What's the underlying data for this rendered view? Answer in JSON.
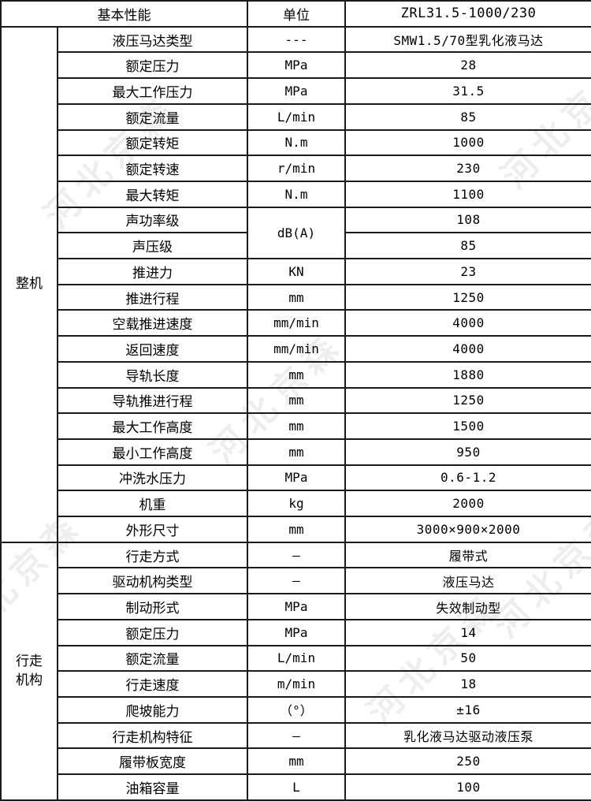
{
  "header": {
    "performance": "基本性能",
    "unit": "单位",
    "model": "ZRL31.5-1000/230"
  },
  "watermark": {
    "text": "河北京森"
  },
  "sections": [
    {
      "label": "整机",
      "rows": [
        {
          "name": "液压马达类型",
          "unit": "---",
          "value": "SMW1.5/70型乳化液马达"
        },
        {
          "name": "额定压力",
          "unit": "MPa",
          "value": "28"
        },
        {
          "name": "最大工作压力",
          "unit": "MPa",
          "value": "31.5"
        },
        {
          "name": "额定流量",
          "unit": "L/min",
          "value": "85"
        },
        {
          "name": "额定转矩",
          "unit": "N.m",
          "value": "1000"
        },
        {
          "name": "额定转速",
          "unit": "r/min",
          "value": "230"
        },
        {
          "name": "最大转矩",
          "unit": "N.m",
          "value": "1100"
        },
        {
          "name": "声功率级",
          "unit": "dB(A)",
          "unit_rowspan": 2,
          "value": "108"
        },
        {
          "name": "声压级",
          "unit": null,
          "value": "85"
        },
        {
          "name": "推进力",
          "unit": "KN",
          "value": "23"
        },
        {
          "name": "推进行程",
          "unit": "mm",
          "value": "1250"
        },
        {
          "name": "空载推进速度",
          "unit": "mm/min",
          "value": "4000"
        },
        {
          "name": "返回速度",
          "unit": "mm/min",
          "value": "4000"
        },
        {
          "name": "导轨长度",
          "unit": "mm",
          "value": "1880"
        },
        {
          "name": "导轨推进行程",
          "unit": "mm",
          "value": "1250"
        },
        {
          "name": "最大工作高度",
          "unit": "mm",
          "value": "1500"
        },
        {
          "name": "最小工作高度",
          "unit": "mm",
          "value": "950"
        },
        {
          "name": "冲洗水压力",
          "unit": "MPa",
          "value": "0.6-1.2"
        },
        {
          "name": "机重",
          "unit": "kg",
          "value": "2000"
        },
        {
          "name": "外形尺寸",
          "unit": "mm",
          "value": "3000×900×2000"
        }
      ]
    },
    {
      "label": "行走机构",
      "rows": [
        {
          "name": "行走方式",
          "unit": "—",
          "value": "履带式"
        },
        {
          "name": "驱动机构类型",
          "unit": "—",
          "value": "液压马达"
        },
        {
          "name": "制动形式",
          "unit": "MPa",
          "value": "失效制动型"
        },
        {
          "name": "额定压力",
          "unit": "MPa",
          "value": "14"
        },
        {
          "name": "额定流量",
          "unit": "L/min",
          "value": "50"
        },
        {
          "name": "行走速度",
          "unit": "m/min",
          "value": "18"
        },
        {
          "name": "爬坡能力",
          "unit": "（°）",
          "value": "±16"
        },
        {
          "name": "行走机构特征",
          "unit": "—",
          "value": "乳化液马达驱动液压泵"
        },
        {
          "name": "履带板宽度",
          "unit": "mm",
          "value": "250"
        },
        {
          "name": "油箱容量",
          "unit": "L",
          "value": "100"
        }
      ]
    }
  ]
}
